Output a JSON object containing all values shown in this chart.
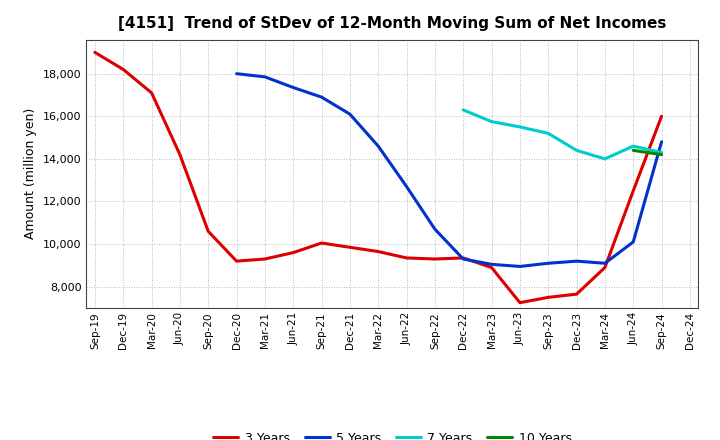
{
  "title": "[4151]  Trend of StDev of 12-Month Moving Sum of Net Incomes",
  "ylabel": "Amount (million yen)",
  "background_color": "#ffffff",
  "grid_color": "#aaaaaa",
  "x_labels": [
    "Sep-19",
    "Dec-19",
    "Mar-20",
    "Jun-20",
    "Sep-20",
    "Dec-20",
    "Mar-21",
    "Jun-21",
    "Sep-21",
    "Dec-21",
    "Mar-22",
    "Jun-22",
    "Sep-22",
    "Dec-22",
    "Mar-23",
    "Jun-23",
    "Sep-23",
    "Dec-23",
    "Mar-24",
    "Jun-24",
    "Sep-24",
    "Dec-24"
  ],
  "series": {
    "3 Years": {
      "color": "#dd0000",
      "data": [
        19000,
        18200,
        17100,
        14200,
        10600,
        9200,
        9300,
        9600,
        10050,
        9850,
        9650,
        9350,
        9300,
        9350,
        8900,
        7250,
        7500,
        7650,
        8900,
        12500,
        16000,
        null
      ]
    },
    "5 Years": {
      "color": "#0033cc",
      "data": [
        null,
        null,
        null,
        null,
        null,
        18000,
        17850,
        17350,
        16900,
        16100,
        14600,
        12700,
        10700,
        9300,
        9050,
        8950,
        9100,
        9200,
        9100,
        10100,
        14800,
        null
      ]
    },
    "7 Years": {
      "color": "#00cccc",
      "data": [
        null,
        null,
        null,
        null,
        null,
        null,
        null,
        null,
        null,
        null,
        null,
        null,
        null,
        16300,
        15750,
        15500,
        15200,
        14400,
        14000,
        14600,
        14300,
        null
      ]
    },
    "10 Years": {
      "color": "#008800",
      "data": [
        null,
        null,
        null,
        null,
        null,
        null,
        null,
        null,
        null,
        null,
        null,
        null,
        null,
        null,
        null,
        null,
        null,
        null,
        null,
        14400,
        14200,
        null
      ]
    }
  },
  "ylim": [
    7000,
    19600
  ],
  "yticks": [
    8000,
    10000,
    12000,
    14000,
    16000,
    18000
  ],
  "legend_order": [
    "3 Years",
    "5 Years",
    "7 Years",
    "10 Years"
  ],
  "linewidth": 2.2
}
